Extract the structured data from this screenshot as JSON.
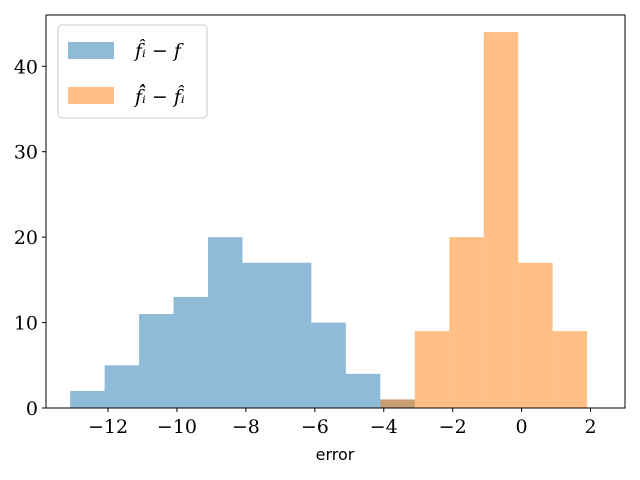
{
  "chart_data": {
    "type": "bar",
    "xlabel": "error",
    "ylabel": "",
    "xlim": [
      -13.8,
      3.0
    ],
    "ylim": [
      0,
      46
    ],
    "x_ticks": [
      -12,
      -10,
      -8,
      -6,
      -4,
      -2,
      0,
      2
    ],
    "x_tick_labels": [
      "−12",
      "−10",
      "−8",
      "−6",
      "−4",
      "−2",
      "0",
      "2"
    ],
    "y_ticks": [
      0,
      10,
      20,
      30,
      40
    ],
    "y_tick_labels": [
      "0",
      "10",
      "20",
      "30",
      "40"
    ],
    "legend_position": "top-left",
    "series": [
      {
        "name": "f̂ᵢ − f",
        "color": "#1f77b4",
        "alpha": 0.5,
        "bins": [
          {
            "x0": -13.1,
            "x1": -12.1,
            "count": 2
          },
          {
            "x0": -12.1,
            "x1": -11.1,
            "count": 5
          },
          {
            "x0": -11.1,
            "x1": -10.1,
            "count": 11
          },
          {
            "x0": -10.1,
            "x1": -9.1,
            "count": 13
          },
          {
            "x0": -9.1,
            "x1": -8.1,
            "count": 20
          },
          {
            "x0": -8.1,
            "x1": -7.1,
            "count": 17
          },
          {
            "x0": -7.1,
            "x1": -6.1,
            "count": 17
          },
          {
            "x0": -6.1,
            "x1": -5.1,
            "count": 10
          },
          {
            "x0": -5.1,
            "x1": -4.1,
            "count": 4
          },
          {
            "x0": -4.1,
            "x1": -3.1,
            "count": 1
          }
        ]
      },
      {
        "name": "f̂̂ᵢ − f̂ᵢ",
        "color": "#ff7f0e",
        "alpha": 0.5,
        "bins": [
          {
            "x0": -4.1,
            "x1": -3.1,
            "count": 1
          },
          {
            "x0": -3.1,
            "x1": -2.1,
            "count": 9
          },
          {
            "x0": -2.1,
            "x1": -1.1,
            "count": 20
          },
          {
            "x0": -1.1,
            "x1": -0.1,
            "count": 44
          },
          {
            "x0": -0.1,
            "x1": 0.9,
            "count": 17
          },
          {
            "x0": 0.9,
            "x1": 1.9,
            "count": 9
          }
        ]
      }
    ]
  }
}
